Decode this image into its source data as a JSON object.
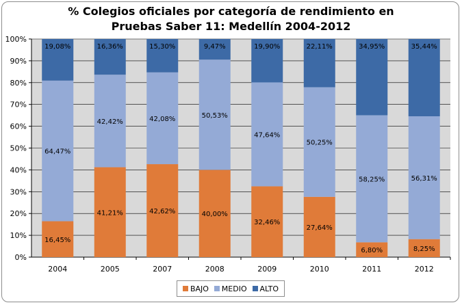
{
  "chart_data": {
    "type": "bar",
    "stacked": true,
    "title_line1": "% Colegios oficiales por categoría de rendimiento en",
    "title_line2": "Pruebas Saber 11: Medellín 2004-2012",
    "categories": [
      "2004",
      "2005",
      "2007",
      "2008",
      "2009",
      "2010",
      "2011",
      "2012"
    ],
    "series": [
      {
        "name": "BAJO",
        "color": "#e07b39",
        "values": [
          16.45,
          41.21,
          42.62,
          40.0,
          32.46,
          27.64,
          6.8,
          8.25
        ],
        "labels": [
          "16,45%",
          "41,21%",
          "42,62%",
          "40,00%",
          "32,46%",
          "27,64%",
          "6,80%",
          "8,25%"
        ]
      },
      {
        "name": "MEDIO",
        "color": "#94aad6",
        "values": [
          64.47,
          42.42,
          42.08,
          50.53,
          47.64,
          50.25,
          58.25,
          56.31
        ],
        "labels": [
          "64,47%",
          "42,42%",
          "42,08%",
          "50,53%",
          "47,64%",
          "50,25%",
          "58,25%",
          "56,31%"
        ]
      },
      {
        "name": "ALTO",
        "color": "#3d6aa6",
        "values": [
          19.08,
          16.36,
          15.3,
          9.47,
          19.9,
          22.11,
          34.95,
          35.44
        ],
        "labels": [
          "19,08%",
          "16,36%",
          "15,30%",
          "9,47%",
          "19,90%",
          "22,11%",
          "34,95%",
          "35,44%"
        ]
      }
    ],
    "yticks": [
      "0%",
      "10%",
      "20%",
      "30%",
      "40%",
      "50%",
      "60%",
      "70%",
      "80%",
      "90%",
      "100%"
    ],
    "ylim": [
      0,
      100
    ],
    "plot_background": "#d9d9d9",
    "legend_position": "bottom",
    "grid": true
  }
}
